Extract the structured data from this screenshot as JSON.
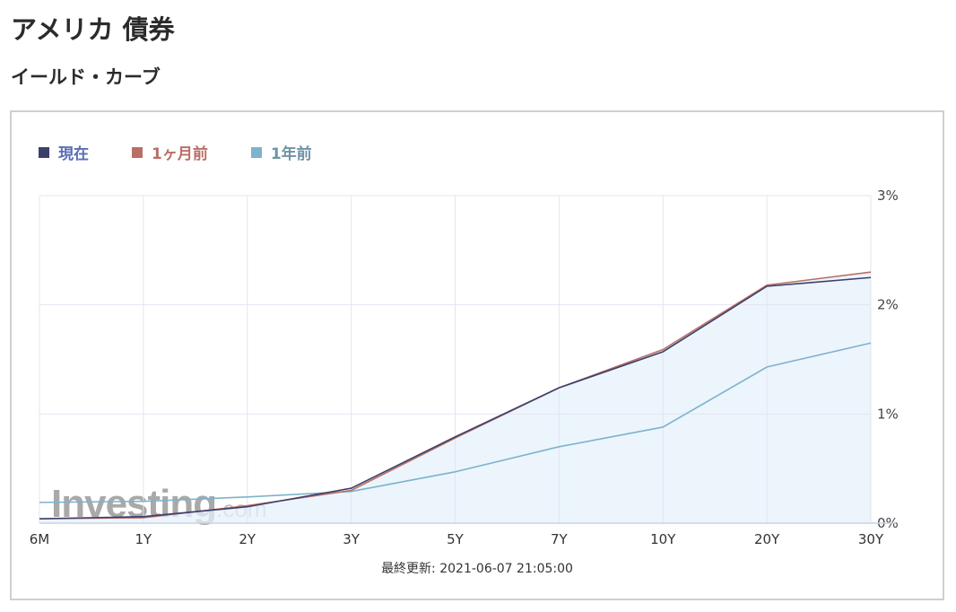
{
  "page": {
    "title": "アメリカ 債券",
    "section": "イールド・カーブ"
  },
  "watermark": {
    "brand": "Investing",
    "suffix": ".com"
  },
  "updated_text": "最終更新: 2021-06-07 21:05:00",
  "chart_data": {
    "type": "area",
    "categories": [
      "6M",
      "1Y",
      "2Y",
      "3Y",
      "5Y",
      "7Y",
      "10Y",
      "20Y",
      "30Y"
    ],
    "y_ticks": [
      "0%",
      "1%",
      "2%",
      "3%"
    ],
    "ylim": [
      0,
      3
    ],
    "y_axis_side": "right",
    "grid": true,
    "legend_position": "top-left",
    "series": [
      {
        "name": "現在",
        "color": "#3d3f6b",
        "legend_color": "#5a6db5",
        "values": [
          0.04,
          0.06,
          0.15,
          0.32,
          0.79,
          1.24,
          1.57,
          2.17,
          2.25
        ]
      },
      {
        "name": "1ヶ月前",
        "color": "#b96f66",
        "legend_color": "#b96f66",
        "values": [
          0.04,
          0.05,
          0.16,
          0.3,
          0.78,
          1.24,
          1.59,
          2.18,
          2.3
        ]
      },
      {
        "name": "1年前",
        "color": "#7db3cc",
        "legend_color": "#6f93a6",
        "values": [
          0.19,
          0.2,
          0.24,
          0.29,
          0.47,
          0.7,
          0.88,
          1.43,
          1.65
        ]
      }
    ],
    "fill_color": "#e6f1fb"
  }
}
